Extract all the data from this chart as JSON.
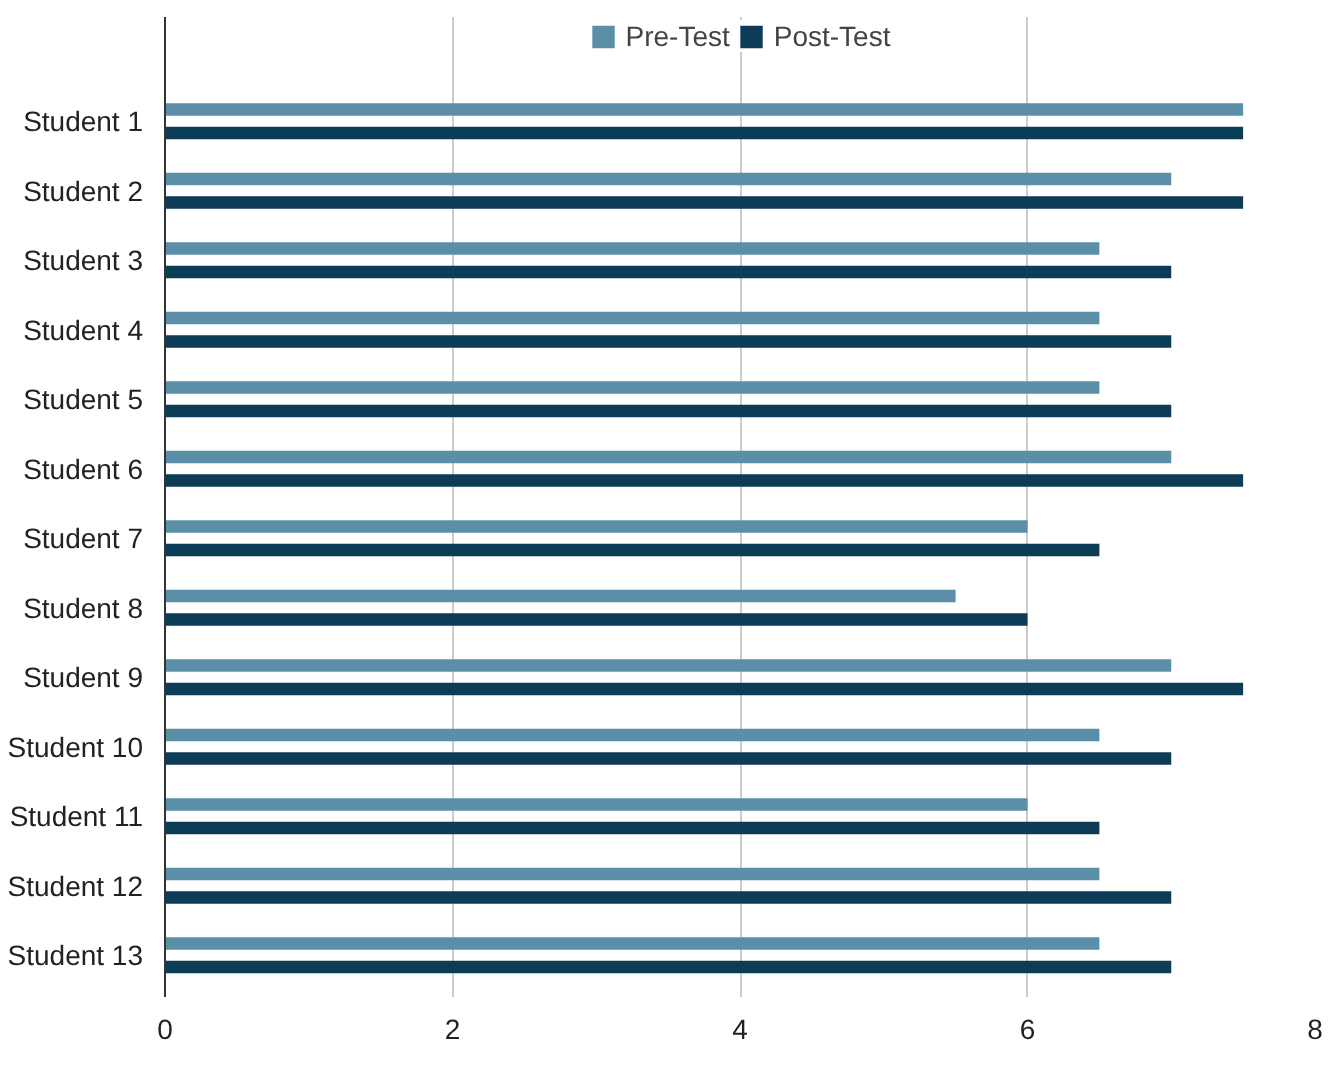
{
  "chart_data": {
    "type": "bar",
    "orientation": "horizontal",
    "categories": [
      "Student 1",
      "Student 2",
      "Student 3",
      "Student 4",
      "Student 5",
      "Student 6",
      "Student 7",
      "Student 8",
      "Student 9",
      "Student 10",
      "Student 11",
      "Student 12",
      "Student 13"
    ],
    "series": [
      {
        "name": "Pre-Test",
        "color": "#5b8fa8",
        "values": [
          7.5,
          7,
          6.5,
          6.5,
          6.5,
          7,
          6,
          5.5,
          7,
          6.5,
          6,
          6.5,
          6.5
        ]
      },
      {
        "name": "Post-Test",
        "color": "#0d3d56",
        "values": [
          7.5,
          7.5,
          7,
          7,
          7,
          7.5,
          6.5,
          6,
          7.5,
          7,
          6.5,
          7,
          7
        ]
      }
    ],
    "xlim": [
      0,
      8
    ],
    "xticks": [
      0,
      2,
      4,
      6,
      8
    ],
    "grid": "x",
    "legend": "top"
  }
}
